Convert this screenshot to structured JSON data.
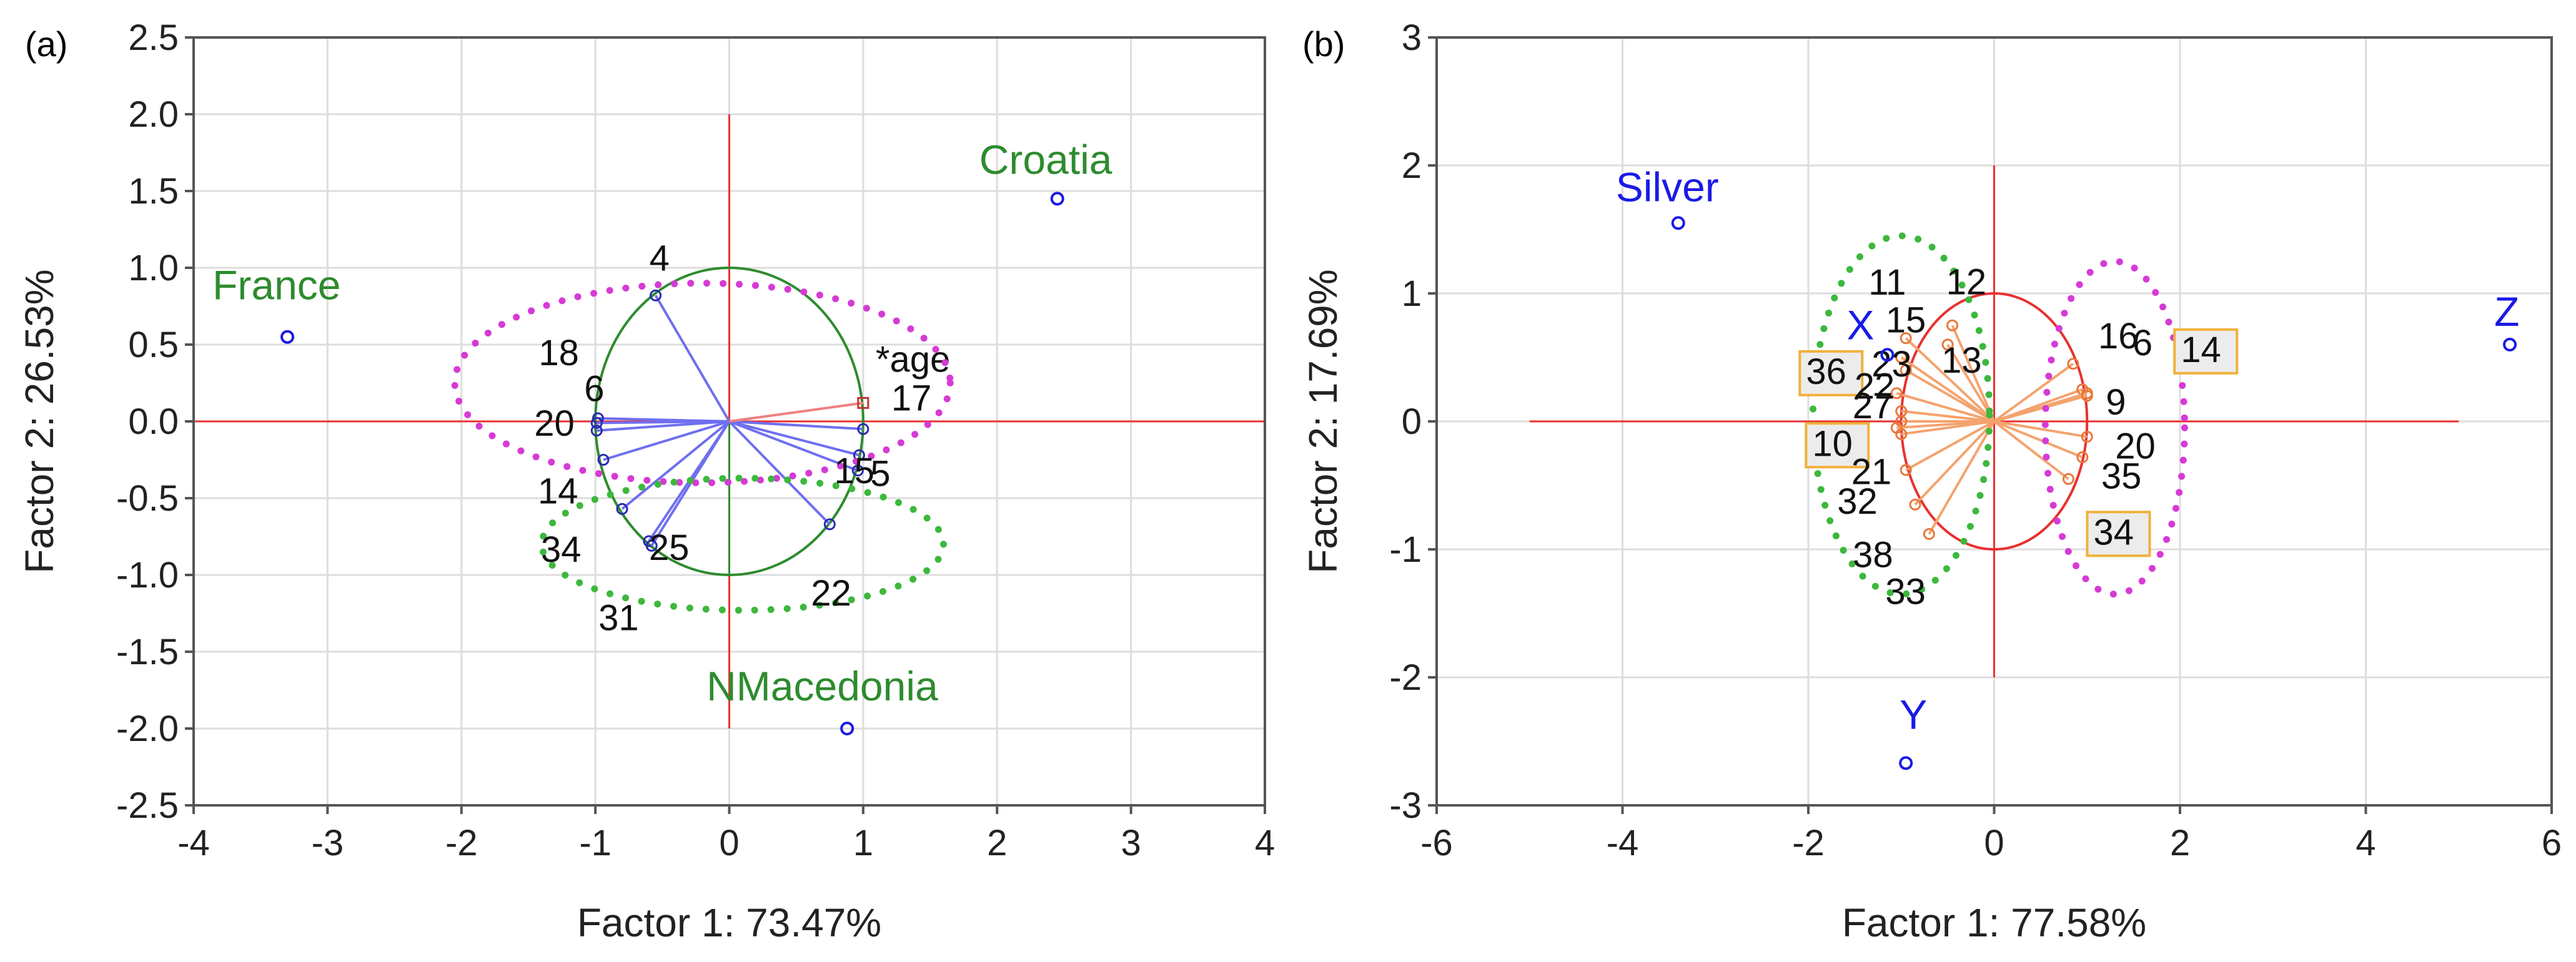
{
  "colors": {
    "frame": "#555555",
    "grid": "#dddddd",
    "zero_line": "#e8312f",
    "circle_a": "#2e8b2e",
    "circle_b": "#e8312f",
    "vector_a": "#6f6ff0",
    "vector_b": "#f4a36e",
    "point_blue": "#1a1ae6",
    "label_green": "#2e8b2e",
    "label_blue": "#1a1ae6",
    "ellipse_magenta": "#d63ad6",
    "ellipse_green": "#3cb83c",
    "box_fill": "#ececec",
    "box_stroke": "#f0b13c"
  },
  "chart_data": [
    {
      "panel_label": "(a)",
      "type": "scatter",
      "subtype": "PCA biplot (variables + supplementary cases)",
      "xlabel": "Factor 1: 73.47%",
      "ylabel": "Factor 2: 26.53%",
      "xlim": [
        -4,
        4
      ],
      "ylim": [
        -2.5,
        2.5
      ],
      "xticks": [
        -4,
        -3,
        -2,
        -1,
        0,
        1,
        2,
        3,
        4
      ],
      "xtick_labels": [
        "-4",
        "-3",
        "-2",
        "-1",
        "0",
        "1",
        "2",
        "3",
        "4"
      ],
      "yticks": [
        2.5,
        2.0,
        1.5,
        1.0,
        0.5,
        0.0,
        -0.5,
        -1.0,
        -1.5,
        -2.0,
        -2.5
      ],
      "ytick_labels": [
        "2.5",
        "2.0",
        "1.5",
        "1.0",
        "0.5",
        "0.0",
        "-0.5",
        "-1.0",
        "-1.5",
        "-2.0",
        "-2.5"
      ],
      "grid": true,
      "unit_circle_radius": 1,
      "variables": [
        {
          "label": "4",
          "x": -0.55,
          "y": 0.82
        },
        {
          "label": "18",
          "x": -0.98,
          "y": 0.02
        },
        {
          "label": "6",
          "x": -0.99,
          "y": -0.01
        },
        {
          "label": "20",
          "x": -0.99,
          "y": -0.06
        },
        {
          "label": "14",
          "x": -0.94,
          "y": -0.25
        },
        {
          "label": "34",
          "x": -0.8,
          "y": -0.57
        },
        {
          "label": "25",
          "x": -0.6,
          "y": -0.78
        },
        {
          "label": "31",
          "x": -0.58,
          "y": -0.81
        },
        {
          "label": "17",
          "x": 1.0,
          "y": -0.05
        },
        {
          "label": "15",
          "x": 0.97,
          "y": -0.22
        },
        {
          "label": "5",
          "x": 0.96,
          "y": -0.32
        },
        {
          "label": "22",
          "x": 0.75,
          "y": -0.67
        }
      ],
      "supplementary_variable": {
        "label": "*age",
        "x": 1.0,
        "y": 0.12
      },
      "cases": [
        {
          "label": "France",
          "x": -3.3,
          "y": 0.55
        },
        {
          "label": "Croatia",
          "x": 2.45,
          "y": 1.45
        },
        {
          "label": "NMacedonia",
          "x": 0.88,
          "y": -2.0
        }
      ],
      "groups": [
        {
          "shape": "ellipse",
          "style": "dotted",
          "color": "magenta",
          "cx": -0.2,
          "cy": 0.25,
          "rx": 1.85,
          "ry": 0.65
        },
        {
          "shape": "ellipse",
          "style": "dotted",
          "color": "green",
          "cx": 0.1,
          "cy": -0.8,
          "rx": 1.5,
          "ry": 0.43
        }
      ]
    },
    {
      "panel_label": "(b)",
      "type": "scatter",
      "subtype": "PCA biplot (variables + supplementary cases)",
      "xlabel": "Factor 1: 77.58%",
      "ylabel": "Factor 2: 17.69%",
      "xlim": [
        -6,
        6
      ],
      "ylim": [
        -3,
        3
      ],
      "xticks": [
        -6,
        -4,
        -2,
        0,
        2,
        4,
        6
      ],
      "xtick_labels": [
        "-6",
        "-4",
        "-2",
        "0",
        "2",
        "4",
        "6"
      ],
      "yticks": [
        3,
        2,
        1,
        0,
        -1,
        -2,
        -3
      ],
      "ytick_labels": [
        "3",
        "2",
        "1",
        "0",
        "-1",
        "-2",
        "-3"
      ],
      "grid": true,
      "unit_circle_radius": 1,
      "variables": [
        {
          "label": "11",
          "x": -0.95,
          "y": 0.65
        },
        {
          "label": "12",
          "x": -0.45,
          "y": 0.75
        },
        {
          "label": "13",
          "x": -0.5,
          "y": 0.6
        },
        {
          "label": "15",
          "x": -1.0,
          "y": 0.5
        },
        {
          "label": "23",
          "x": -0.95,
          "y": 0.4
        },
        {
          "label": "36",
          "x": -1.05,
          "y": 0.22
        },
        {
          "label": "22",
          "x": -1.0,
          "y": 0.08
        },
        {
          "label": "27",
          "x": -1.0,
          "y": 0.0
        },
        {
          "label": "10",
          "x": -1.05,
          "y": -0.05
        },
        {
          "label": "21",
          "x": -1.0,
          "y": -0.1
        },
        {
          "label": "32",
          "x": -0.95,
          "y": -0.38
        },
        {
          "label": "38",
          "x": -0.85,
          "y": -0.65
        },
        {
          "label": "33",
          "x": -0.7,
          "y": -0.88
        },
        {
          "label": "16",
          "x": 0.85,
          "y": 0.45
        },
        {
          "label": "6",
          "x": 0.95,
          "y": 0.25
        },
        {
          "label": "14",
          "x": 1.0,
          "y": 0.22
        },
        {
          "label": "9",
          "x": 1.0,
          "y": 0.2
        },
        {
          "label": "20",
          "x": 1.0,
          "y": -0.12
        },
        {
          "label": "35",
          "x": 0.95,
          "y": -0.28
        },
        {
          "label": "34",
          "x": 0.8,
          "y": -0.45
        }
      ],
      "cases": [
        {
          "label": "Silver",
          "x": -3.4,
          "y": 1.55
        },
        {
          "label": "X",
          "x": -1.15,
          "y": 0.52
        },
        {
          "label": "Y",
          "x": -0.95,
          "y": -2.67
        },
        {
          "label": "Z",
          "x": 5.55,
          "y": 0.6
        }
      ],
      "boxed_labels": [
        "36",
        "10",
        "14",
        "34"
      ],
      "groups": [
        {
          "shape": "ellipse",
          "style": "dotted",
          "color": "green",
          "cx": -1.0,
          "cy": 0.05,
          "rx": 0.95,
          "ry": 1.4
        },
        {
          "shape": "ellipse",
          "style": "dotted",
          "color": "magenta",
          "cx": 1.3,
          "cy": -0.05,
          "rx": 0.75,
          "ry": 1.3
        }
      ]
    }
  ]
}
